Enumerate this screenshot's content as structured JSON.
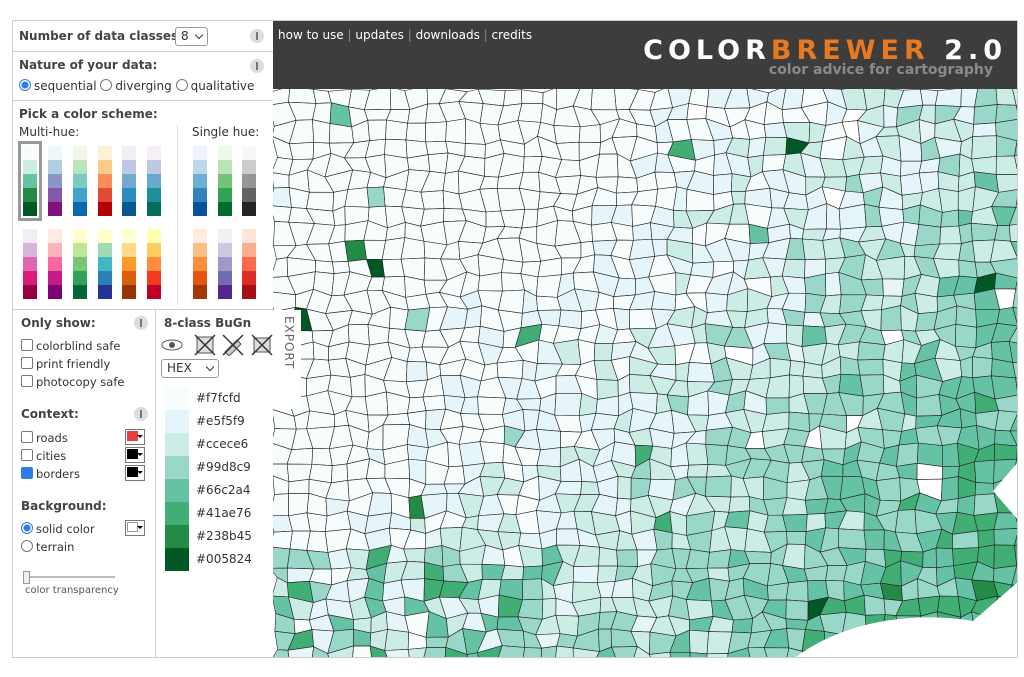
{
  "nav": [
    "how to use",
    "updates",
    "downloads",
    "credits"
  ],
  "brand": {
    "color": "COLOR",
    "brewer": "BREWER",
    "version": "2.0",
    "tagline": "color advice for cartography"
  },
  "sidebar": {
    "data_classes": {
      "label": "Number of data classes:",
      "value": 8
    },
    "nature": {
      "label": "Nature of your data:",
      "options": [
        {
          "text": "sequential",
          "checked": true
        },
        {
          "text": "diverging",
          "checked": false
        },
        {
          "text": "qualitative",
          "checked": false
        }
      ]
    },
    "scheme": {
      "label": "Pick a color scheme:",
      "multi_hue": "Multi-hue:",
      "single_hue": "Single hue:"
    },
    "only_show": {
      "label": "Only show:",
      "options": [
        {
          "text": "colorblind safe",
          "checked": false
        },
        {
          "text": "print friendly",
          "checked": false
        },
        {
          "text": "photocopy safe",
          "checked": false
        }
      ]
    },
    "context": {
      "label": "Context:",
      "options": [
        {
          "text": "roads",
          "checked": false,
          "color": "#e84040"
        },
        {
          "text": "cities",
          "checked": false,
          "color": "#000000"
        },
        {
          "text": "borders",
          "checked": true,
          "color": "#000000"
        }
      ]
    },
    "background": {
      "label": "Background:",
      "options": [
        {
          "text": "solid color",
          "checked": true,
          "color": "#ffffff"
        },
        {
          "text": "terrain",
          "checked": false
        }
      ],
      "transparency": "color transparency"
    }
  },
  "export": {
    "title": "8-class BuGn",
    "format": "HEX",
    "tab": "EXPORT",
    "colors": [
      "#f7fcfd",
      "#e5f5f9",
      "#ccece6",
      "#99d8c9",
      "#66c2a4",
      "#41ae76",
      "#238b45",
      "#005824"
    ]
  }
}
